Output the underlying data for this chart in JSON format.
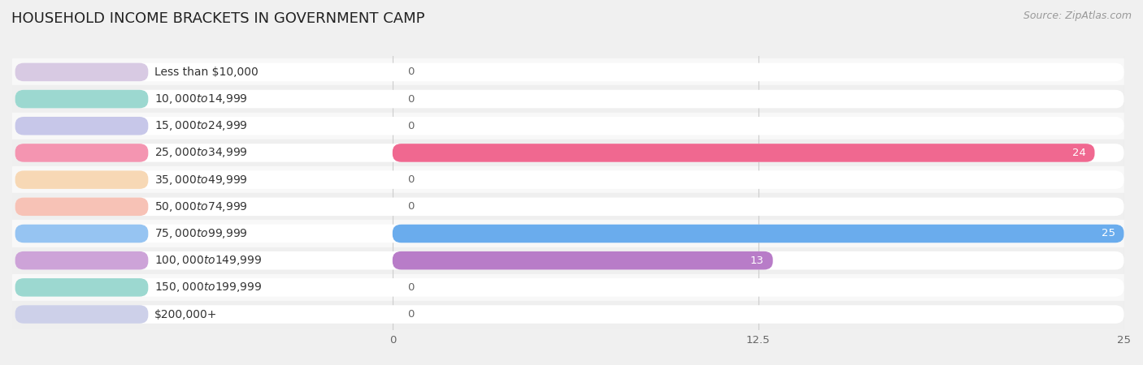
{
  "title": "HOUSEHOLD INCOME BRACKETS IN GOVERNMENT CAMP",
  "source": "Source: ZipAtlas.com",
  "categories": [
    "Less than $10,000",
    "$10,000 to $14,999",
    "$15,000 to $24,999",
    "$25,000 to $34,999",
    "$35,000 to $49,999",
    "$50,000 to $74,999",
    "$75,000 to $99,999",
    "$100,000 to $149,999",
    "$150,000 to $199,999",
    "$200,000+"
  ],
  "values": [
    0,
    0,
    0,
    24,
    0,
    0,
    25,
    13,
    0,
    0
  ],
  "bar_colors": [
    "#c8b4d8",
    "#72c8bc",
    "#b0b0e0",
    "#f06890",
    "#f5c896",
    "#f5a898",
    "#6aaced",
    "#b87cc8",
    "#72c8bc",
    "#b8bce0"
  ],
  "xlim": [
    0,
    25
  ],
  "xticks": [
    0,
    12.5,
    25
  ],
  "background_color": "#f0f0f0",
  "row_colors": [
    "#f8f8f8",
    "#efefef"
  ],
  "pill_bg_color": "#ffffff",
  "title_fontsize": 13,
  "label_fontsize": 10,
  "value_fontsize": 9.5,
  "source_fontsize": 9
}
